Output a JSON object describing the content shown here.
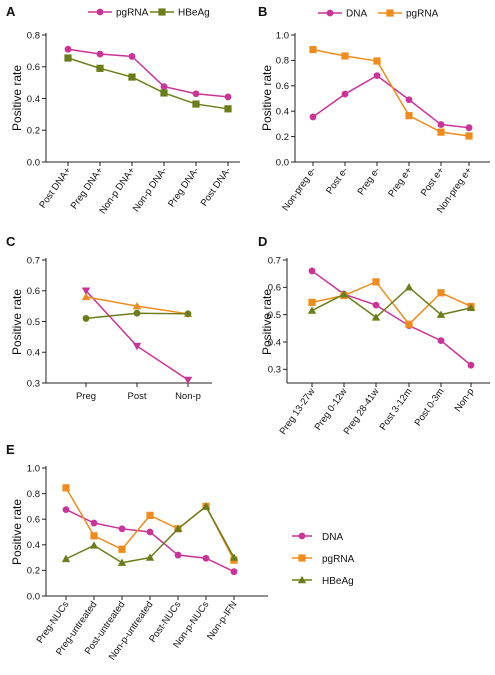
{
  "colors": {
    "DNA": "#cc3399",
    "pgRNA": "#f08c1c",
    "HBeAg": "#6b7d1a",
    "pgRNA_A": "#cc3399"
  },
  "chart_data": [
    {
      "panel": "A",
      "type": "line",
      "ylabel": "Positive rate",
      "ylim": [
        0.0,
        0.8
      ],
      "yticks": [
        "0.0",
        "0.2",
        "0.4",
        "0.6",
        "0.8"
      ],
      "categories": [
        "Post DNA+",
        "Preg DNA+",
        "Non-p DNA+",
        "Non-p DNA-",
        "Preg DNA-",
        "Post DNA-"
      ],
      "legend": "top",
      "series": [
        {
          "name": "pgRNA",
          "key": "pgRNA_A",
          "marker": "circle",
          "values": [
            0.71,
            0.68,
            0.665,
            0.475,
            0.43,
            0.41
          ]
        },
        {
          "name": "HBeAg",
          "key": "HBeAg",
          "marker": "square",
          "values": [
            0.655,
            0.59,
            0.535,
            0.435,
            0.365,
            0.335
          ]
        }
      ]
    },
    {
      "panel": "B",
      "type": "line",
      "ylabel": "Positive rate",
      "ylim": [
        0.0,
        1.0
      ],
      "yticks": [
        "0.0",
        "0.2",
        "0.4",
        "0.6",
        "0.8",
        "1.0"
      ],
      "categories": [
        "Non-preg e-",
        "Post e-",
        "Preg e-",
        "Preg e+",
        "Post e+",
        "Non-preg e+"
      ],
      "legend": "top",
      "series": [
        {
          "name": "DNA",
          "key": "DNA",
          "marker": "circle",
          "values": [
            0.355,
            0.535,
            0.68,
            0.49,
            0.295,
            0.27
          ]
        },
        {
          "name": "pgRNA",
          "key": "pgRNA",
          "marker": "square",
          "values": [
            0.885,
            0.835,
            0.795,
            0.365,
            0.235,
            0.205
          ]
        }
      ]
    },
    {
      "panel": "C",
      "type": "line",
      "ylabel": "Positive rate",
      "ylim": [
        0.3,
        0.7
      ],
      "yticks": [
        "0.3",
        "0.4",
        "0.5",
        "0.6",
        "0.7"
      ],
      "categories": [
        "Preg",
        "Post",
        "Non-p"
      ],
      "series": [
        {
          "key": "DNA",
          "marker": "triangle-down",
          "values": [
            0.6,
            0.42,
            0.31
          ]
        },
        {
          "key": "pgRNA",
          "marker": "triangle",
          "values": [
            0.58,
            0.55,
            0.525
          ]
        },
        {
          "key": "HBeAg",
          "marker": "circle",
          "values": [
            0.51,
            0.527,
            0.525
          ]
        }
      ]
    },
    {
      "panel": "D",
      "type": "line",
      "ylabel": "Positive rate",
      "ylim": [
        0.25,
        0.7
      ],
      "yticks": [
        "0.3",
        "0.4",
        "0.5",
        "0.6",
        "0.7"
      ],
      "categories": [
        "Preg 13-27w",
        "Preg 0-12w",
        "Preg 28-41w",
        "Post 3-12m",
        "Post 0-3m",
        "Non-p"
      ],
      "series": [
        {
          "key": "DNA",
          "marker": "circle",
          "values": [
            0.66,
            0.575,
            0.535,
            0.46,
            0.405,
            0.315
          ]
        },
        {
          "key": "pgRNA",
          "marker": "square",
          "values": [
            0.545,
            0.57,
            0.62,
            0.465,
            0.58,
            0.53
          ]
        },
        {
          "key": "HBeAg",
          "marker": "triangle",
          "values": [
            0.515,
            0.575,
            0.49,
            0.6,
            0.5,
            0.525
          ]
        }
      ]
    },
    {
      "panel": "E",
      "type": "line",
      "ylabel": "Positive rate",
      "ylim": [
        0.0,
        1.0
      ],
      "yticks": [
        "0.0",
        "0.2",
        "0.4",
        "0.6",
        "0.8",
        "1.0"
      ],
      "categories": [
        "Preg-NUCs",
        "Preg-untreated",
        "Post-untreated",
        "Non-p-untreated",
        "Post-NUCs",
        "Non-p-NUCs",
        "Non-p-IFN"
      ],
      "legend": "right",
      "legend_entries": [
        "DNA",
        "pgRNA",
        "HBeAg"
      ],
      "series": [
        {
          "name": "DNA",
          "key": "DNA",
          "marker": "circle",
          "values": [
            0.675,
            0.57,
            0.525,
            0.5,
            0.32,
            0.295,
            0.19
          ]
        },
        {
          "name": "pgRNA",
          "key": "pgRNA",
          "marker": "square",
          "values": [
            0.845,
            0.47,
            0.365,
            0.63,
            0.525,
            0.7,
            0.28
          ]
        },
        {
          "name": "HBeAg",
          "key": "HBeAg",
          "marker": "triangle",
          "values": [
            0.29,
            0.395,
            0.26,
            0.3,
            0.525,
            0.7,
            0.3
          ]
        }
      ]
    }
  ]
}
